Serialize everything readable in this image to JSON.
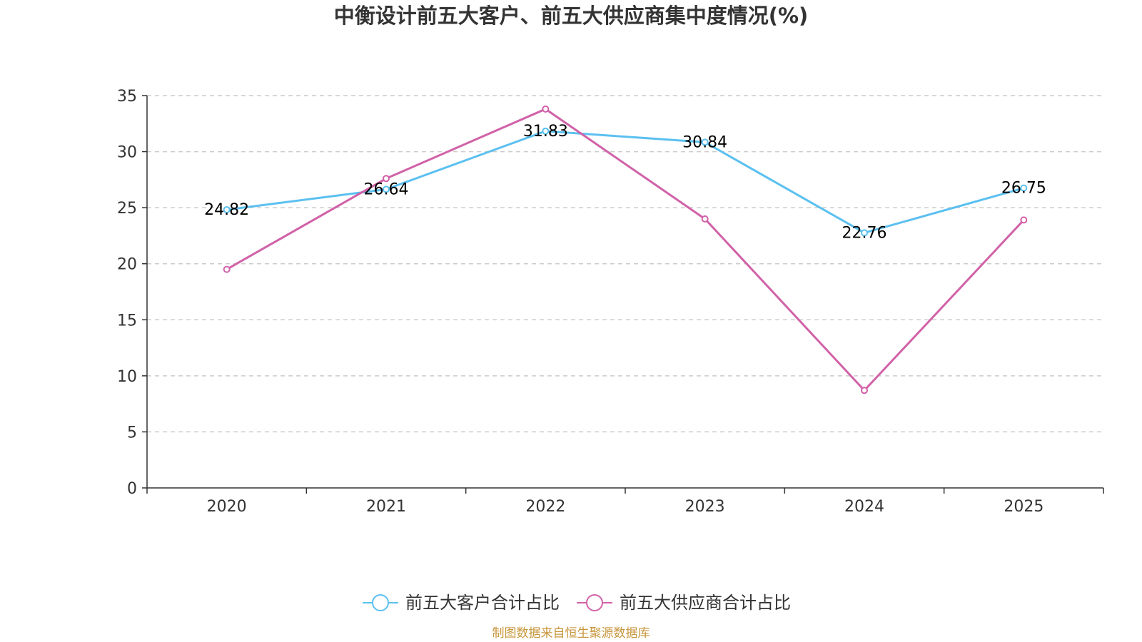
{
  "chart_data": {
    "type": "line",
    "title": "中衡设计前五大客户、前五大供应商集中度情况(%)",
    "categories": [
      "2020",
      "2021",
      "2022",
      "2023",
      "2024",
      "2025"
    ],
    "ylim": [
      0,
      35
    ],
    "yticks": [
      "0",
      "5",
      "10",
      "15",
      "20",
      "25",
      "30",
      "35"
    ],
    "grid": true,
    "legend_position": "bottom",
    "xlabel": "",
    "ylabel": "",
    "series": [
      {
        "name": "前五大客户合计占比",
        "color": "#5bc0f0",
        "values": [
          24.82,
          26.64,
          31.83,
          30.84,
          22.76,
          26.75
        ],
        "labels": [
          "24.82",
          "26.64",
          "31.83",
          "30.84",
          "22.76",
          "26.75"
        ]
      },
      {
        "name": "前五大供应商合计占比",
        "color": "#d162a8",
        "values": [
          19.5,
          27.6,
          33.8,
          24.0,
          8.7,
          23.9
        ],
        "labels": []
      }
    ]
  },
  "source": {
    "text": "制图数据来自恒生聚源数据库",
    "color": "#c8963c"
  },
  "colors": {
    "axis": "#333333",
    "grid": "#cccccc"
  }
}
